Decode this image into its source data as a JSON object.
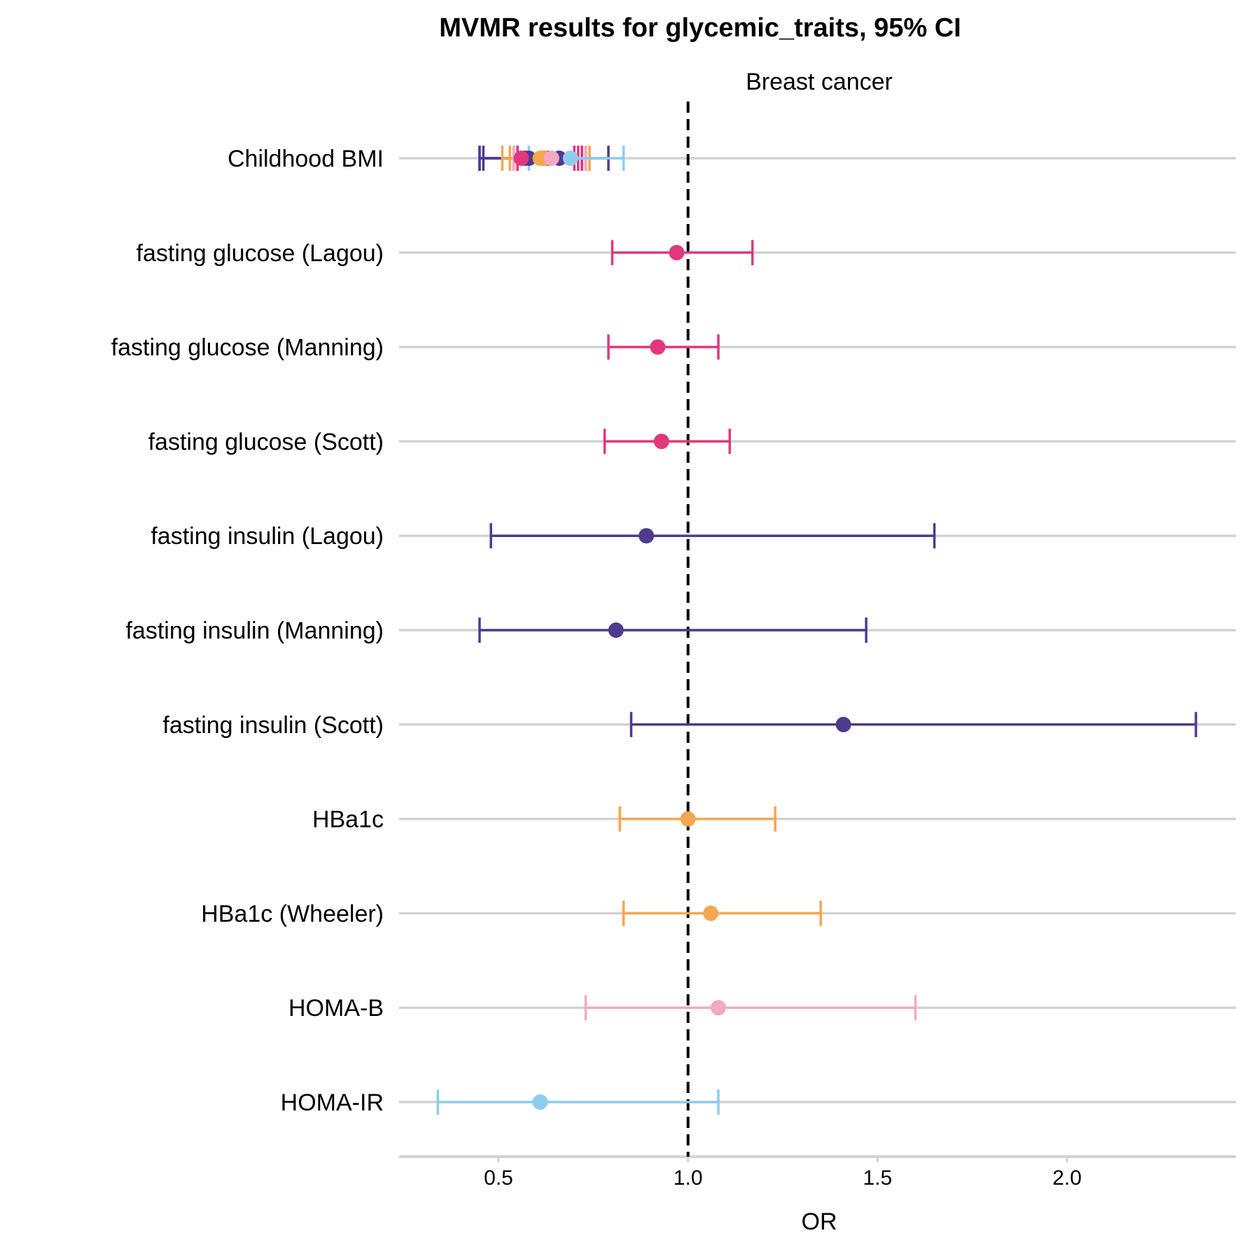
{
  "chart_data": {
    "type": "forest",
    "title": "MVMR results for glycemic_traits, 95% CI",
    "facet_label": "Breast cancer",
    "xlabel": "OR",
    "ylabel": "",
    "xlim": [
      0.25,
      2.45
    ],
    "x_ticks": [
      0.5,
      1.0,
      1.5,
      2.0
    ],
    "x_tick_labels": [
      "0.5",
      "1.0",
      "1.5",
      "2.0"
    ],
    "reference_line": 1.0,
    "grid": "horizontal",
    "legend": "none",
    "categories": [
      "Childhood BMI",
      "fasting glucose (Lagou)",
      "fasting glucose (Manning)",
      "fasting glucose (Scott)",
      "fasting insulin (Lagou)",
      "fasting insulin (Manning)",
      "fasting insulin (Scott)",
      "HBa1c",
      "HBa1c (Wheeler)",
      "HOMA-B",
      "HOMA-IR"
    ],
    "colors": {
      "glucose": "#e0387c",
      "insulin": "#4f3a8f",
      "hba1c": "#f5a651",
      "homa_b": "#f3a8c3",
      "homa_ir": "#8fcdee"
    },
    "points": [
      {
        "category": "Childhood BMI",
        "group": "insulin",
        "or": 0.58,
        "lower": 0.45,
        "upper": 0.73
      },
      {
        "category": "Childhood BMI",
        "group": "insulin",
        "or": 0.66,
        "lower": 0.46,
        "upper": 0.79
      },
      {
        "category": "Childhood BMI",
        "group": "insulin",
        "or": 0.57,
        "lower": 0.45,
        "upper": 0.72
      },
      {
        "category": "Childhood BMI",
        "group": "glucose",
        "or": 0.56,
        "lower": 0.55,
        "upper": 0.7
      },
      {
        "category": "Childhood BMI",
        "group": "glucose",
        "or": 0.62,
        "lower": 0.54,
        "upper": 0.72
      },
      {
        "category": "Childhood BMI",
        "group": "glucose",
        "or": 0.63,
        "lower": 0.55,
        "upper": 0.71
      },
      {
        "category": "Childhood BMI",
        "group": "hba1c",
        "or": 0.61,
        "lower": 0.51,
        "upper": 0.74
      },
      {
        "category": "Childhood BMI",
        "group": "hba1c",
        "or": 0.62,
        "lower": 0.53,
        "upper": 0.74
      },
      {
        "category": "Childhood BMI",
        "group": "homa_b",
        "or": 0.64,
        "lower": 0.54,
        "upper": 0.73
      },
      {
        "category": "Childhood BMI",
        "group": "homa_ir",
        "or": 0.69,
        "lower": 0.58,
        "upper": 0.83
      },
      {
        "category": "fasting glucose (Lagou)",
        "group": "glucose",
        "or": 0.97,
        "lower": 0.8,
        "upper": 1.17
      },
      {
        "category": "fasting glucose (Manning)",
        "group": "glucose",
        "or": 0.92,
        "lower": 0.79,
        "upper": 1.08
      },
      {
        "category": "fasting glucose (Scott)",
        "group": "glucose",
        "or": 0.93,
        "lower": 0.78,
        "upper": 1.11
      },
      {
        "category": "fasting insulin (Lagou)",
        "group": "insulin",
        "or": 0.89,
        "lower": 0.48,
        "upper": 1.65
      },
      {
        "category": "fasting insulin (Manning)",
        "group": "insulin",
        "or": 0.81,
        "lower": 0.45,
        "upper": 1.47
      },
      {
        "category": "fasting insulin (Scott)",
        "group": "insulin",
        "or": 1.41,
        "lower": 0.85,
        "upper": 2.34
      },
      {
        "category": "HBa1c",
        "group": "hba1c",
        "or": 1.0,
        "lower": 0.82,
        "upper": 1.23
      },
      {
        "category": "HBa1c (Wheeler)",
        "group": "hba1c",
        "or": 1.06,
        "lower": 0.83,
        "upper": 1.35
      },
      {
        "category": "HOMA-B",
        "group": "homa_b",
        "or": 1.08,
        "lower": 0.73,
        "upper": 1.6
      },
      {
        "category": "HOMA-IR",
        "group": "homa_ir",
        "or": 0.61,
        "lower": 0.34,
        "upper": 1.08
      }
    ]
  }
}
